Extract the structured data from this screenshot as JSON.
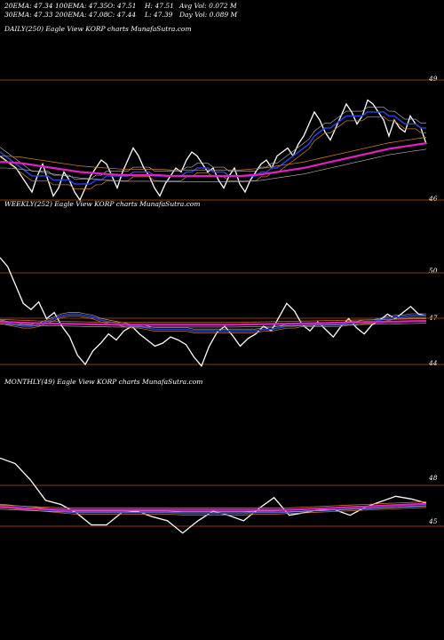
{
  "header": {
    "row1": [
      "20EMA: 47.34",
      "100EMA: 47.35",
      "O: 47.51",
      "H: 47.51",
      "Avg Vol: 0.072  M"
    ],
    "row2": [
      "30EMA: 47.33",
      "200EMA: 47.08",
      "C: 47.44",
      "L: 47.39",
      "Day Vol: 0.089 M"
    ]
  },
  "colors": {
    "price": "#ffffff",
    "ema_blue": "#2a3fd6",
    "ema_pink": "#e020c0",
    "ema_orange": "#c07820",
    "ema_grey": "#bbbbbb",
    "level_line": "#8a3a10"
  },
  "chart_data": [
    {
      "type": "line",
      "title": "DAILY(250) Eagle  View  KORP charts MunafaSutra.com",
      "y_tick_labels": [
        "49",
        "46"
      ],
      "ylim": [
        45.6,
        49.3
      ],
      "series": [
        {
          "role": "price",
          "values": [
            47.1,
            47.0,
            46.9,
            46.8,
            46.6,
            46.4,
            46.2,
            46.6,
            46.9,
            46.5,
            46.1,
            46.3,
            46.7,
            46.5,
            46.2,
            46.0,
            46.3,
            46.6,
            46.8,
            47.0,
            46.9,
            46.6,
            46.3,
            46.7,
            47.0,
            47.3,
            47.1,
            46.8,
            46.6,
            46.3,
            46.1,
            46.4,
            46.6,
            46.8,
            46.7,
            47.0,
            47.2,
            47.1,
            46.9,
            46.7,
            46.8,
            46.5,
            46.3,
            46.6,
            46.8,
            46.4,
            46.2,
            46.5,
            46.7,
            46.9,
            47.0,
            46.8,
            47.1,
            47.2,
            47.3,
            47.1,
            47.4,
            47.6,
            47.9,
            48.2,
            48.0,
            47.7,
            47.5,
            47.8,
            48.1,
            48.4,
            48.2,
            47.9,
            48.1,
            48.5,
            48.4,
            48.2,
            48.0,
            47.6,
            48.0,
            47.8,
            47.7,
            48.1,
            47.9,
            47.8,
            47.4
          ]
        },
        {
          "role": "ema-fast",
          "values": [
            47.2,
            47.1,
            47.0,
            46.9,
            46.8,
            46.7,
            46.6,
            46.6,
            46.6,
            46.6,
            46.5,
            46.5,
            46.5,
            46.5,
            46.4,
            46.4,
            46.4,
            46.4,
            46.5,
            46.5,
            46.6,
            46.6,
            46.6,
            46.6,
            46.6,
            46.7,
            46.7,
            46.7,
            46.7,
            46.6,
            46.6,
            46.6,
            46.6,
            46.6,
            46.6,
            46.7,
            46.7,
            46.8,
            46.8,
            46.8,
            46.7,
            46.7,
            46.7,
            46.6,
            46.6,
            46.6,
            46.6,
            46.6,
            46.6,
            46.7,
            46.7,
            46.8,
            46.8,
            46.9,
            47.0,
            47.1,
            47.2,
            47.3,
            47.4,
            47.6,
            47.7,
            47.8,
            47.8,
            47.9,
            48.0,
            48.1,
            48.1,
            48.1,
            48.1,
            48.2,
            48.2,
            48.2,
            48.2,
            48.1,
            48.1,
            48.0,
            47.9,
            47.9,
            47.9,
            47.8,
            47.8
          ]
        },
        {
          "role": "ema-slow",
          "values": [
            46.95,
            46.95,
            46.94,
            46.93,
            46.92,
            46.9,
            46.88,
            46.86,
            46.84,
            46.82,
            46.8,
            46.78,
            46.76,
            46.74,
            46.72,
            46.7,
            46.69,
            46.68,
            46.67,
            46.66,
            46.65,
            46.64,
            46.63,
            46.62,
            46.62,
            46.62,
            46.62,
            46.62,
            46.62,
            46.62,
            46.62,
            46.61,
            46.6,
            46.6,
            46.6,
            46.6,
            46.6,
            46.6,
            46.6,
            46.6,
            46.6,
            46.6,
            46.6,
            46.6,
            46.6,
            46.6,
            46.61,
            46.62,
            46.63,
            46.64,
            46.66,
            46.68,
            46.7,
            46.72,
            46.74,
            46.76,
            46.78,
            46.8,
            46.83,
            46.86,
            46.89,
            46.92,
            46.95,
            46.98,
            47.01,
            47.04,
            47.07,
            47.1,
            47.13,
            47.16,
            47.19,
            47.22,
            47.25,
            47.28,
            47.3,
            47.32,
            47.34,
            47.36,
            47.38,
            47.4,
            47.42
          ]
        }
      ]
    },
    {
      "type": "line",
      "title": "WEEKLY(252) Eagle  View  KORP charts MunafaSutra.com",
      "y_tick_labels": [
        "50",
        "47",
        "44"
      ],
      "ylim": [
        43.5,
        51.5
      ],
      "series": [
        {
          "role": "price",
          "values": [
            51.0,
            50.4,
            49.2,
            48.0,
            47.6,
            48.1,
            47.0,
            47.4,
            46.5,
            45.8,
            44.6,
            44.0,
            44.9,
            45.4,
            46.0,
            45.6,
            46.2,
            46.5,
            46.0,
            45.6,
            45.2,
            45.4,
            45.8,
            45.6,
            45.3,
            44.5,
            43.9,
            45.2,
            46.1,
            46.5,
            45.9,
            45.2,
            45.7,
            46.0,
            46.5,
            46.2,
            47.1,
            48.0,
            47.5,
            46.6,
            46.2,
            46.8,
            46.3,
            45.8,
            46.5,
            47.0,
            46.4,
            46.0,
            46.6,
            46.9,
            47.3,
            47.0,
            47.4,
            47.8,
            47.3,
            47.2
          ]
        },
        {
          "role": "ema-blue",
          "values": [
            46.8,
            46.7,
            46.6,
            46.5,
            46.5,
            46.6,
            46.8,
            47.0,
            47.2,
            47.3,
            47.3,
            47.2,
            47.1,
            46.9,
            46.8,
            46.7,
            46.6,
            46.5,
            46.5,
            46.4,
            46.3,
            46.3,
            46.3,
            46.3,
            46.3,
            46.2,
            46.2,
            46.2,
            46.2,
            46.2,
            46.2,
            46.2,
            46.2,
            46.2,
            46.3,
            46.3,
            46.4,
            46.5,
            46.5,
            46.6,
            46.6,
            46.6,
            46.6,
            46.6,
            46.6,
            46.7,
            46.7,
            46.8,
            46.8,
            46.9,
            47.0,
            47.1,
            47.1,
            47.2,
            47.2,
            47.2
          ]
        },
        {
          "role": "ema-pink",
          "values": [
            46.8,
            46.78,
            46.76,
            46.74,
            46.72,
            46.7,
            46.69,
            46.68,
            46.67,
            46.66,
            46.65,
            46.64,
            46.63,
            46.62,
            46.61,
            46.6,
            46.6,
            46.6,
            46.6,
            46.6,
            46.6,
            46.6,
            46.6,
            46.6,
            46.6,
            46.6,
            46.6,
            46.6,
            46.6,
            46.6,
            46.6,
            46.61,
            46.62,
            46.63,
            46.64,
            46.65,
            46.66,
            46.67,
            46.68,
            46.69,
            46.7,
            46.71,
            46.72,
            46.73,
            46.74,
            46.75,
            46.76,
            46.77,
            46.78,
            46.79,
            46.8,
            46.81,
            46.82,
            46.83,
            46.84,
            46.85
          ]
        }
      ]
    },
    {
      "type": "line",
      "title": "MONTHLY(49) Eagle  View  KORP charts MunafaSutra.com",
      "y_tick_labels": [
        "48",
        "45"
      ],
      "ylim": [
        44.0,
        51.0
      ],
      "series": [
        {
          "role": "price",
          "values": [
            50.0,
            49.6,
            48.4,
            46.9,
            46.6,
            46.0,
            45.1,
            45.1,
            46.0,
            46.1,
            45.7,
            45.4,
            44.5,
            45.4,
            46.1,
            45.8,
            45.4,
            46.3,
            47.1,
            45.8,
            46.0,
            46.2,
            46.2,
            45.8,
            46.4,
            46.8,
            47.2,
            47.0,
            46.7
          ]
        },
        {
          "role": "ema-blue",
          "values": [
            46.5,
            46.4,
            46.3,
            46.2,
            46.1,
            46.0,
            46.0,
            46.0,
            46.0,
            46.0,
            46.0,
            46.0,
            45.95,
            45.95,
            45.95,
            45.95,
            45.95,
            46.0,
            46.0,
            46.05,
            46.1,
            46.15,
            46.2,
            46.25,
            46.3,
            46.35,
            46.4,
            46.45,
            46.5
          ]
        },
        {
          "role": "ema-pink",
          "values": [
            46.4,
            46.35,
            46.3,
            46.25,
            46.2,
            46.2,
            46.2,
            46.2,
            46.2,
            46.2,
            46.2,
            46.2,
            46.2,
            46.2,
            46.2,
            46.2,
            46.2,
            46.2,
            46.2,
            46.2,
            46.25,
            46.3,
            46.35,
            46.4,
            46.45,
            46.5,
            46.55,
            46.6,
            46.65
          ]
        }
      ]
    }
  ]
}
